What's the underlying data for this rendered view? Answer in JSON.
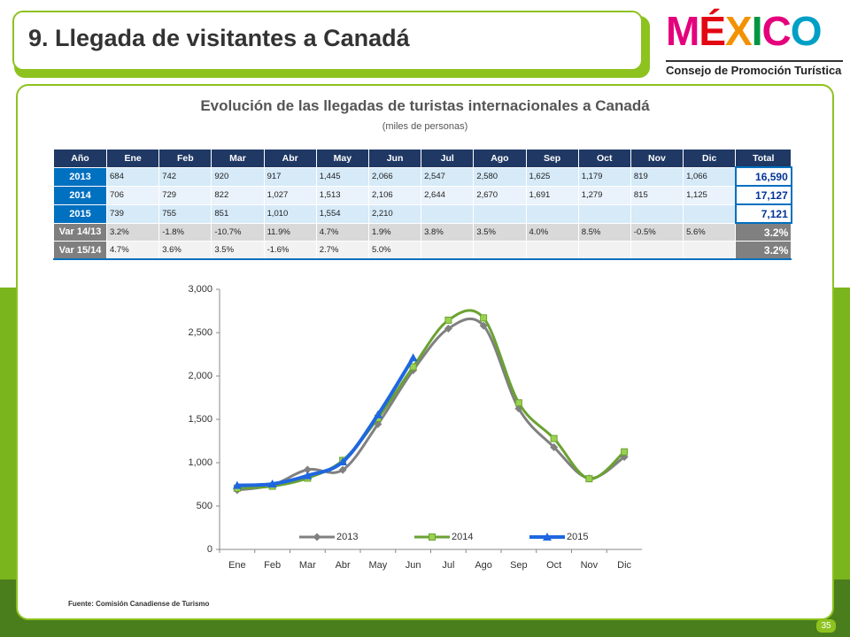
{
  "header": {
    "title": "9. Llegada de visitantes a Canadá",
    "logo_letters": [
      "M",
      "É",
      "X",
      "I",
      "C",
      "O"
    ],
    "logo_colors": [
      "#e4007c",
      "#e30613",
      "#f39200",
      "#009640",
      "#e4007c",
      "#00a0c6"
    ],
    "logo_sub": "Consejo de Promoción Turística"
  },
  "table": {
    "title": "Evolución de las llegadas de turistas internacionales a Canadá",
    "subtitle": "(miles de personas)",
    "columns": [
      "Año",
      "Ene",
      "Feb",
      "Mar",
      "Abr",
      "May",
      "Jun",
      "Jul",
      "Ago",
      "Sep",
      "Oct",
      "Nov",
      "Dic",
      "Total"
    ],
    "rows": [
      [
        "2013",
        "684",
        "742",
        "920",
        "917",
        "1,445",
        "2,066",
        "2,547",
        "2,580",
        "1,625",
        "1,179",
        "819",
        "1,066",
        "16,590"
      ],
      [
        "2014",
        "706",
        "729",
        "822",
        "1,027",
        "1,513",
        "2,106",
        "2,644",
        "2,670",
        "1,691",
        "1,279",
        "815",
        "1,125",
        "17,127"
      ],
      [
        "2015",
        "739",
        "755",
        "851",
        "1,010",
        "1,554",
        "2,210",
        null,
        null,
        null,
        null,
        null,
        null,
        "7,121"
      ],
      [
        "Var 14/13",
        "3.2%",
        "-1.8%",
        "-10.7%",
        "11.9%",
        "4.7%",
        "1.9%",
        "3.8%",
        "3.5%",
        "4.0%",
        "8.5%",
        "-0.5%",
        "5.6%",
        "3.2%"
      ],
      [
        "Var 15/14",
        "4.7%",
        "3.6%",
        "3.5%",
        "-1.6%",
        "2.7%",
        "5.0%",
        null,
        null,
        null,
        null,
        null,
        null,
        "3.2%"
      ]
    ]
  },
  "chart_data": {
    "type": "line",
    "categories": [
      "Ene",
      "Feb",
      "Mar",
      "Abr",
      "May",
      "Jun",
      "Jul",
      "Ago",
      "Sep",
      "Oct",
      "Nov",
      "Dic"
    ],
    "series": [
      {
        "name": "2013",
        "color": "#808080",
        "marker": "diamond",
        "values": [
          684,
          742,
          920,
          917,
          1445,
          2066,
          2547,
          2580,
          1625,
          1179,
          819,
          1066
        ]
      },
      {
        "name": "2014",
        "color": "#6aa231",
        "marker": "square",
        "values": [
          706,
          729,
          822,
          1027,
          1513,
          2106,
          2644,
          2670,
          1691,
          1279,
          815,
          1125
        ]
      },
      {
        "name": "2015",
        "color": "#1f66e0",
        "marker": "triangle",
        "values": [
          739,
          755,
          851,
          1010,
          1554,
          2210,
          null,
          null,
          null,
          null,
          null,
          null
        ]
      }
    ],
    "ylim": [
      0,
      3000
    ],
    "yticks": [
      0,
      500,
      {
        "value": 1000,
        "label": "1,000"
      },
      {
        "value": 1500,
        "label": "1,500"
      },
      {
        "value": 2000,
        "label": "2,000"
      },
      {
        "value": 2500,
        "label": "2,500"
      },
      {
        "value": 3000,
        "label": "3,000"
      }
    ],
    "smooth": true,
    "legend": "bottom"
  },
  "source": "Fuente: Comisión Canadiense de Turismo",
  "page_number": "35"
}
